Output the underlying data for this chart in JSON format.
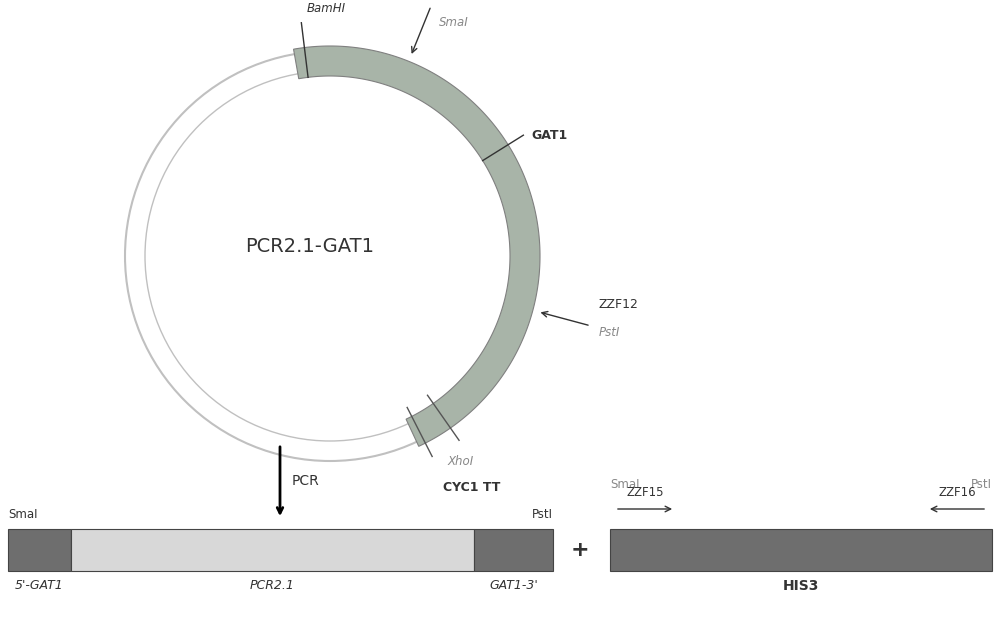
{
  "bg_color": "#ffffff",
  "plasmid_label": "PCR2.1-GAT1",
  "plasmid_label_fontsize": 14,
  "arc_facecolor": "#a0a8a0",
  "arc_edgecolor": "#707070",
  "circle_facecolor": "#f5f5f5",
  "circle_edgecolor": "#c0c0c0",
  "circle_linewidth_outer": 1.5,
  "circle_linewidth_inner": 1.0,
  "bar1_dark_color": "#6e6e6e",
  "bar1_light_color": "#d8d8d8",
  "bar2_dark_color": "#6e6e6e",
  "bar1_label_left": "5'-GAT1",
  "bar1_label_center": "PCR2.1",
  "bar1_label_right": "GAT1-3'",
  "bar2_label": "HIS3",
  "pcr_label": "PCR",
  "plus_symbol": "+",
  "zzf15_label": "ZZF15",
  "zzf16_label": "ZZF16",
  "label_color_gray": "#888888",
  "label_color_dark": "#333333"
}
